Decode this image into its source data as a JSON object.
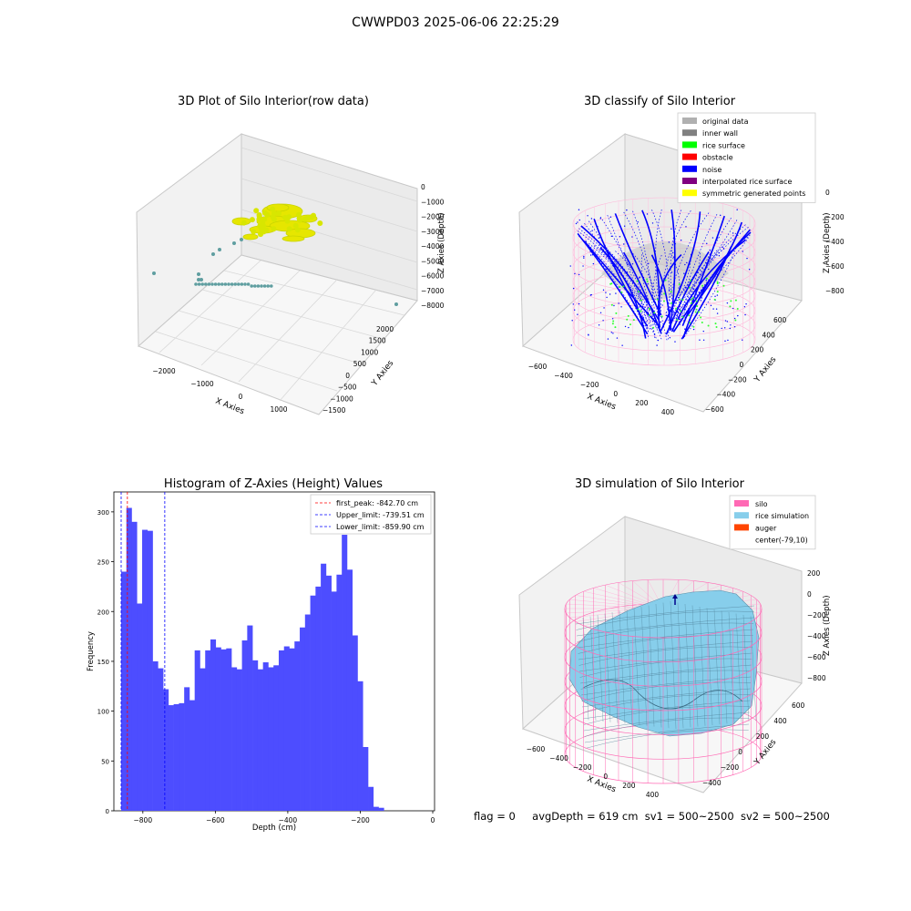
{
  "figure_title": "CWWPD03 2025-06-06 22:25:29",
  "status": {
    "flag": "flag = 0",
    "avg_depth": "avgDepth = 619 cm",
    "sv1": "sv1 = 500~2500",
    "sv2": "sv2 = 500~2500"
  },
  "chart_data": [
    {
      "type": "scatter",
      "title": "3D Plot of Silo Interior(row data)",
      "xlabel": "X Axies",
      "ylabel": "Y Axies",
      "zlabel": "Z Axies (Depth)",
      "x_ticks": [
        -2000,
        -1000,
        0,
        1000
      ],
      "y_ticks": [
        -1500,
        -1000,
        -500,
        0,
        500,
        1000,
        1500,
        2000
      ],
      "z_ticks": [
        0,
        -1000,
        -2000,
        -3000,
        -4000,
        -5000,
        -6000,
        -7000,
        -8000
      ],
      "colors": {
        "points": "#e6e600",
        "outliers": "#5f9ea0"
      }
    },
    {
      "type": "scatter",
      "title": "3D classify of Silo Interior",
      "xlabel": "X Axies",
      "ylabel": "Y Axies",
      "zlabel": "Z Axies (Depth)",
      "x_ticks": [
        -600,
        -400,
        -200,
        0,
        200,
        400
      ],
      "y_ticks": [
        -600,
        -400,
        -200,
        0,
        200,
        400,
        600
      ],
      "z_ticks": [
        0,
        -200,
        -400,
        -600,
        -800
      ],
      "legend": [
        {
          "label": "original data",
          "color": "#b0b0b0"
        },
        {
          "label": "inner wall",
          "color": "#808080"
        },
        {
          "label": "rice surface",
          "color": "#00ff00"
        },
        {
          "label": "obstacle",
          "color": "#ff0000"
        },
        {
          "label": "noise",
          "color": "#0000ff"
        },
        {
          "label": "interpolated rice surface",
          "color": "#800080"
        },
        {
          "label": "symmetric generated points",
          "color": "#ffff00"
        }
      ],
      "legend_position": "top-right"
    },
    {
      "type": "bar",
      "title": "Histogram of Z-Axies (Height) Values",
      "xlabel": "Depth (cm)",
      "ylabel": "Frequency",
      "xlim": [
        -880,
        5
      ],
      "ylim": [
        0,
        320
      ],
      "x_ticks": [
        -800,
        -600,
        -400,
        -200,
        0
      ],
      "y_ticks": [
        0,
        50,
        100,
        150,
        200,
        250,
        300
      ],
      "bin_start": -860,
      "bin_width": 14.5,
      "values": [
        240,
        304,
        290,
        208,
        282,
        281,
        150,
        143,
        122,
        106,
        107,
        108,
        124,
        111,
        161,
        143,
        161,
        172,
        164,
        162,
        163,
        144,
        142,
        171,
        186,
        151,
        142,
        149,
        144,
        146,
        161,
        165,
        163,
        170,
        184,
        197,
        216,
        225,
        248,
        236,
        220,
        237,
        277,
        242,
        176,
        130,
        64,
        24,
        4,
        3
      ],
      "bar_color": "#4d4dff",
      "lines": [
        {
          "label": "first_peak: -842.70 cm",
          "value": -842.7,
          "color": "#ff0000"
        },
        {
          "label": "Upper_limit: -739.51 cm",
          "value": -739.51,
          "color": "#0000ff"
        },
        {
          "label": "Lower_limit: -859.90 cm",
          "value": -859.9,
          "color": "#0000ff"
        }
      ],
      "legend_position": "top-right"
    },
    {
      "type": "area",
      "title": "3D simulation of Silo Interior",
      "xlabel": "X Axies",
      "ylabel": "Y Axies",
      "zlabel": "Z Axies (Depth)",
      "x_ticks": [
        -600,
        -400,
        -200,
        0,
        200,
        400
      ],
      "y_ticks": [
        -400,
        -200,
        0,
        200,
        400,
        600
      ],
      "z_ticks": [
        200,
        0,
        -200,
        -400,
        -600,
        -800
      ],
      "legend": [
        {
          "label": "silo",
          "color": "#ff69b4"
        },
        {
          "label": "rice simulation",
          "color": "#87ceeb"
        },
        {
          "label": "auger",
          "color": "#ff4500"
        },
        {
          "label": "center(-79,10)",
          "color": "#ffffff"
        }
      ],
      "legend_position": "top-right"
    }
  ]
}
